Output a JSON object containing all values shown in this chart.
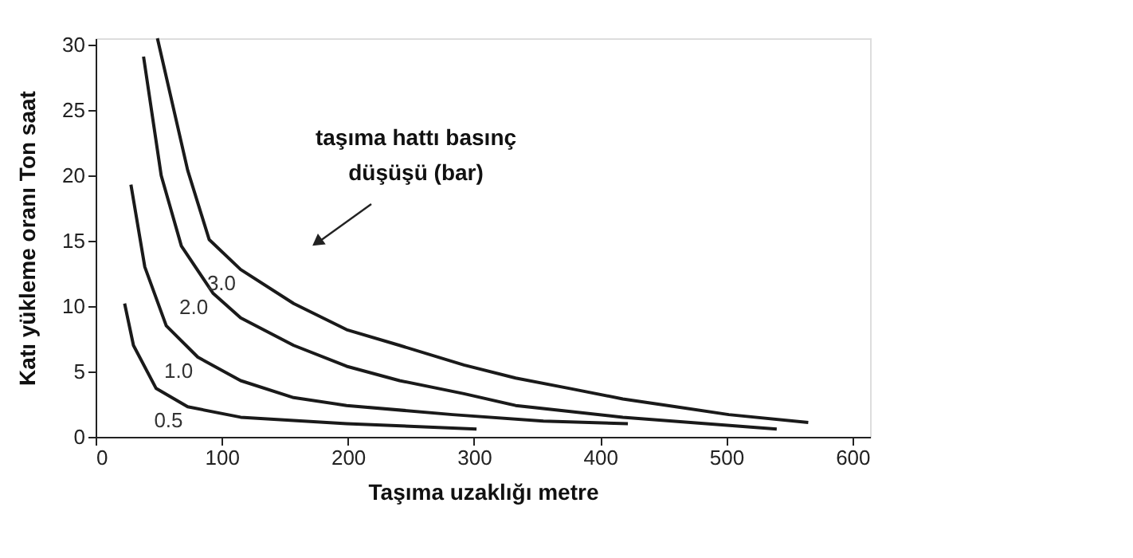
{
  "chart_data": {
    "type": "line",
    "xlabel": "Taşıma uzaklığı metre",
    "ylabel": "Katı yükleme oranı Ton saat",
    "annotations": [
      "taşıma hattı basınç\ndüşüşü (bar)"
    ],
    "xlim": [
      0,
      614
    ],
    "ylim": [
      0,
      30.5
    ],
    "xticks": [
      0,
      100,
      200,
      300,
      400,
      500,
      600
    ],
    "yticks": [
      0,
      5,
      10,
      15,
      20,
      25,
      30
    ],
    "grid": false,
    "legend": false,
    "marker": "none",
    "line_style": "solid",
    "series": [
      {
        "name": "0.5",
        "color": "#1a1a1a",
        "x": [
          23,
          30,
          48,
          73,
          115,
          199,
          302
        ],
        "values": [
          10.2,
          7,
          3.7,
          2.3,
          1.5,
          1,
          0.6
        ]
      },
      {
        "name": "1.0",
        "color": "#1a1a1a",
        "x": [
          28,
          39,
          56,
          81,
          115,
          157,
          199,
          283,
          355,
          422
        ],
        "values": [
          19.3,
          13,
          8.5,
          6.1,
          4.3,
          3,
          2.4,
          1.7,
          1.2,
          1
        ]
      },
      {
        "name": "2.0",
        "color": "#1a1a1a",
        "x": [
          38,
          52,
          68,
          93,
          115,
          157,
          199,
          241,
          292,
          333,
          418,
          540
        ],
        "values": [
          29.1,
          20,
          14.6,
          11,
          9.1,
          7,
          5.4,
          4.3,
          3.3,
          2.4,
          1.5,
          0.6
        ]
      },
      {
        "name": "3.0",
        "color": "#1a1a1a",
        "x": [
          49,
          73,
          90,
          115,
          157,
          199,
          241,
          292,
          333,
          376,
          418,
          460,
          502,
          565
        ],
        "values": [
          30.5,
          20.4,
          15.1,
          12.8,
          10.2,
          8.2,
          7,
          5.5,
          4.5,
          3.7,
          2.9,
          2.3,
          1.7,
          1.1
        ]
      }
    ]
  }
}
